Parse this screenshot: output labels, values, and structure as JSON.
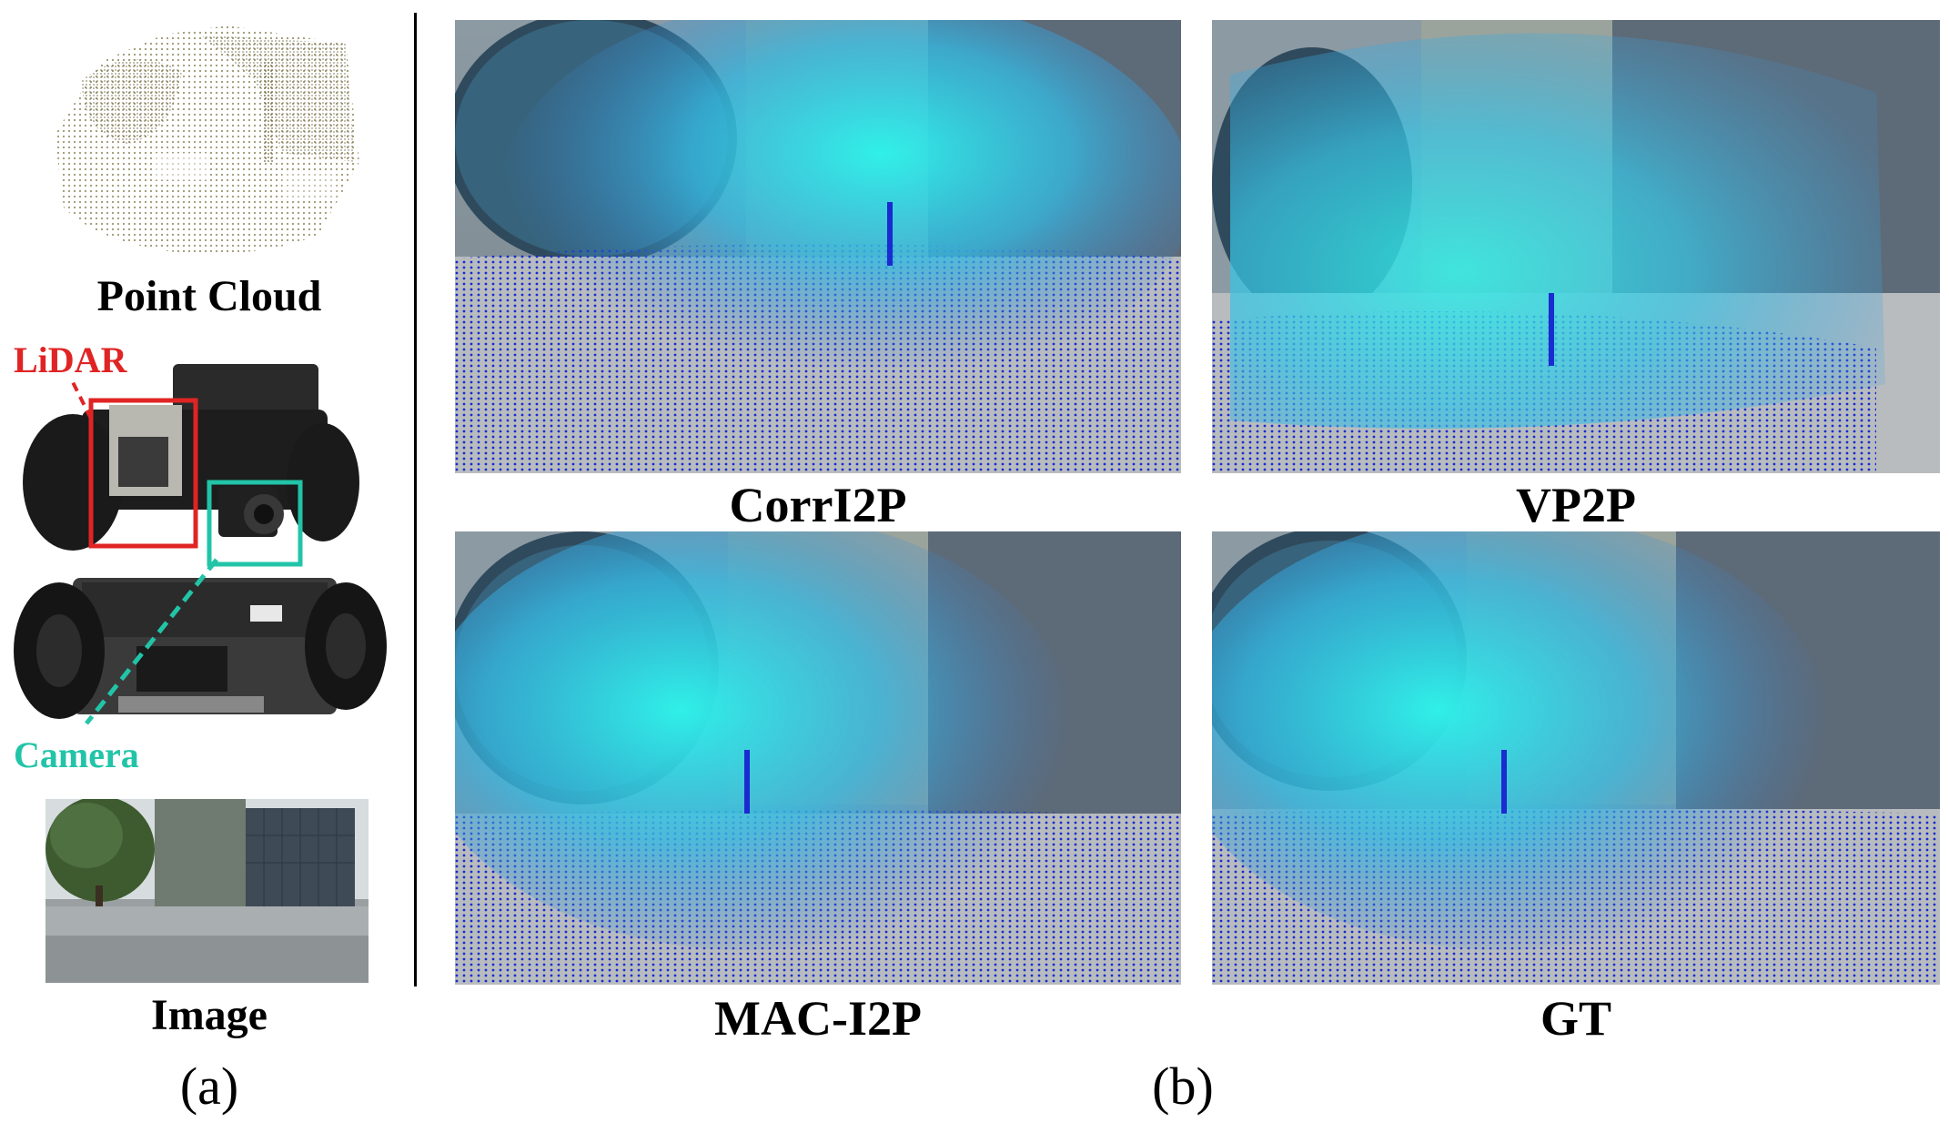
{
  "panel_a": {
    "point_cloud_label": "Point Cloud",
    "robot_labels": {
      "lidar": "LiDAR",
      "camera": "Camera"
    },
    "image_label": "Image",
    "sub_label": "(a)"
  },
  "panel_b": {
    "results": [
      {
        "method": "CorrI2P"
      },
      {
        "method": "VP2P"
      },
      {
        "method": "MAC-I2P"
      },
      {
        "method": "GT"
      }
    ],
    "sub_label": "(b)"
  },
  "colors": {
    "lidar_box": "#e02424",
    "camera_box": "#22c4a8",
    "point_near": "#1a2bd0",
    "point_far": "#30e0e8"
  }
}
